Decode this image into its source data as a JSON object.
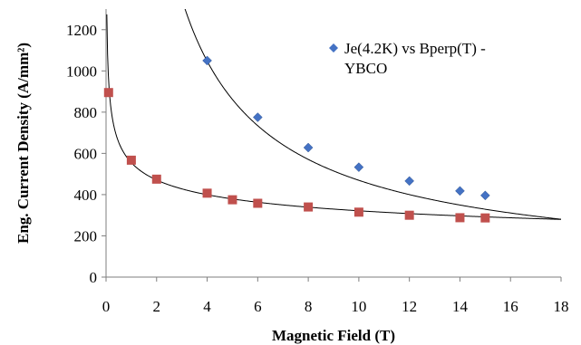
{
  "chart_data": {
    "type": "scatter",
    "title": "",
    "xlabel": "Magnetic Field (T)",
    "ylabel": "Eng. Current Density (A/mm²)",
    "xlim": [
      0,
      18
    ],
    "ylim": [
      0,
      1300
    ],
    "x_ticks": [
      0,
      2,
      4,
      6,
      8,
      10,
      12,
      14,
      16,
      18
    ],
    "y_ticks": [
      0,
      200,
      400,
      600,
      800,
      1000,
      1200
    ],
    "grid": false,
    "legend": {
      "placement": "top-right",
      "entries": [
        {
          "line1": "Je(4.2K) vs Bperp(T) -",
          "line2": "YBCO",
          "marker": "diamond",
          "color": "#4472C4"
        }
      ]
    },
    "series": [
      {
        "marker": "diamond",
        "color": "#4472C4",
        "points": [
          {
            "x": 4,
            "y": 1050
          },
          {
            "x": 6,
            "y": 775
          },
          {
            "x": 8,
            "y": 628
          },
          {
            "x": 10,
            "y": 533
          },
          {
            "x": 12,
            "y": 466
          },
          {
            "x": 14,
            "y": 418
          },
          {
            "x": 15,
            "y": 396
          }
        ],
        "trendline": {
          "type": "power",
          "a": 3528,
          "b": -0.876
        }
      },
      {
        "marker": "square",
        "color": "#C0504D",
        "points": [
          {
            "x": 0.1,
            "y": 895
          },
          {
            "x": 1,
            "y": 567
          },
          {
            "x": 2,
            "y": 475
          },
          {
            "x": 4,
            "y": 407
          },
          {
            "x": 5,
            "y": 375
          },
          {
            "x": 6,
            "y": 358
          },
          {
            "x": 8,
            "y": 340
          },
          {
            "x": 10,
            "y": 315
          },
          {
            "x": 12,
            "y": 300
          },
          {
            "x": 14,
            "y": 288
          },
          {
            "x": 15,
            "y": 287
          }
        ],
        "trendline": {
          "type": "power",
          "a": 555,
          "b": -0.237
        }
      }
    ]
  }
}
